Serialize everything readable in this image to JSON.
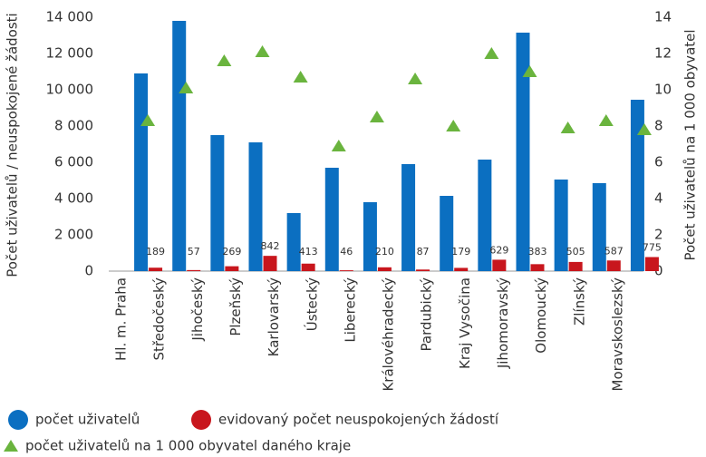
{
  "chart_data": {
    "type": "bar",
    "ylabel": "Počet uživatelů / neuspokojené žádosti",
    "y2label": "Počet uživatelů na 1 000 obyvatel",
    "categories": [
      "Hl. m. Praha",
      "Středočeský",
      "Jihočeský",
      "Plzeňský",
      "Karlovarský",
      "Ústecký",
      "Liberecký",
      "Královéhradecký",
      "Pardubický",
      "Kraj Vysočina",
      "Jihomoravský",
      "Olomoucký",
      "Zlínský",
      "Moravskoslezský"
    ],
    "series": [
      {
        "name": "počet uživatelů",
        "color": "#0b6fc1",
        "values": [
          10900,
          13800,
          7500,
          7100,
          3200,
          5700,
          3800,
          5900,
          4150,
          6150,
          13150,
          5050,
          4850,
          9450
        ]
      },
      {
        "name": "evidovaný počet neuspokojených žádostí",
        "color": "#c8161d",
        "values": [
          189,
          57,
          269,
          842,
          413,
          46,
          210,
          87,
          179,
          629,
          383,
          505,
          587,
          775
        ],
        "data_labels": true
      },
      {
        "name": "počet uživatelů na 1 000 obyvatel daného kraje",
        "color": "#6ab43e",
        "axis": "y2",
        "marker": "triangle",
        "values": [
          8.3,
          10.1,
          11.6,
          12.1,
          10.7,
          6.9,
          8.5,
          10.6,
          8.0,
          12.0,
          11.0,
          7.9,
          8.3,
          7.8
        ]
      }
    ],
    "ylim": [
      0,
      14000
    ],
    "yticks": [
      0,
      {
        "value": 2000,
        "label": "2 000"
      },
      {
        "value": 4000,
        "label": "4 000"
      },
      {
        "value": 6000,
        "label": "6 000"
      },
      {
        "value": 8000,
        "label": "8 000"
      },
      {
        "value": 10000,
        "label": "10 000"
      },
      {
        "value": 12000,
        "label": "12 000"
      },
      {
        "value": 14000,
        "label": "14 000"
      }
    ],
    "y2lim": [
      0,
      14
    ],
    "y2ticks": [
      0,
      2,
      4,
      6,
      8,
      10,
      12,
      14
    ],
    "grid": false,
    "legend": "bottom"
  }
}
